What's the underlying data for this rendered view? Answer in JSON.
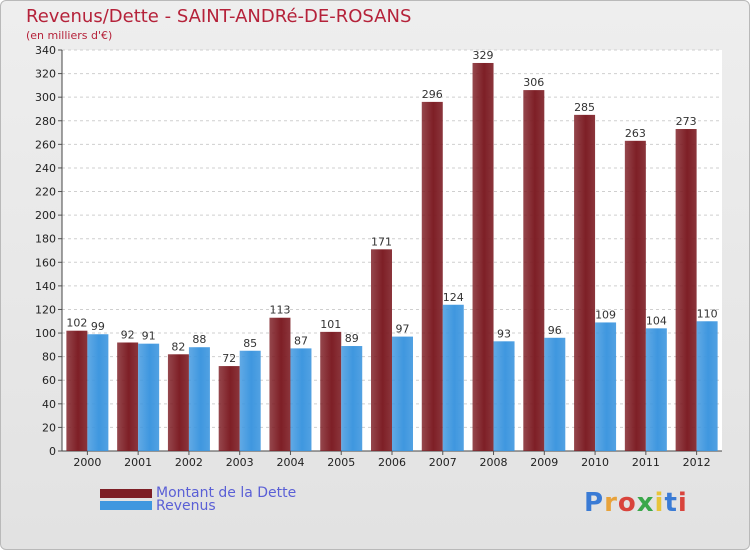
{
  "header": {
    "title": "Revenus/Dette - SAINT-ANDRé-DE-ROSANS",
    "subtitle": "(en milliers d'€)"
  },
  "logo": {
    "text": "Proxiti",
    "colors": [
      "#3a7bd5",
      "#e8a23a",
      "#d9443c",
      "#3aa84a",
      "#e8c43a",
      "#3a7bd5",
      "#d9443c"
    ]
  },
  "chart_data": {
    "type": "bar",
    "categories": [
      "2000",
      "2001",
      "2002",
      "2003",
      "2004",
      "2005",
      "2006",
      "2007",
      "2008",
      "2009",
      "2010",
      "2011",
      "2012"
    ],
    "series": [
      {
        "name": "Montant de la Dette",
        "color": "#7e1f26",
        "values": [
          102,
          92,
          82,
          72,
          113,
          101,
          171,
          296,
          329,
          306,
          285,
          263,
          273
        ]
      },
      {
        "name": "Revenus",
        "color": "#3f97df",
        "values": [
          99,
          91,
          88,
          85,
          87,
          89,
          97,
          124,
          93,
          96,
          109,
          104,
          110
        ]
      }
    ],
    "ylim": [
      0,
      340
    ],
    "yticks": [
      "0",
      "20",
      "40",
      "60",
      "80",
      "100",
      "120",
      "140",
      "160",
      "180",
      "200",
      "220",
      "240",
      "260",
      "280",
      "300",
      "320",
      "340"
    ],
    "grid": true,
    "legend": "bottom-left"
  }
}
